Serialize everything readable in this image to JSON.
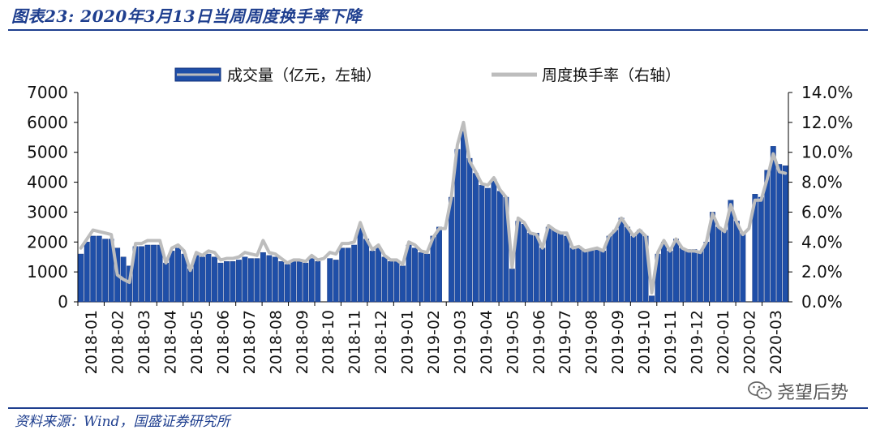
{
  "header": {
    "title": "图表23:  2020年3月13日当周周度换手率下降"
  },
  "footer": {
    "source": "资料来源：Wind，国盛证券研究所",
    "watermark": "尧望后势"
  },
  "colors": {
    "bar": "#1f4fa8",
    "bar_dark": "#0f2f7a",
    "line": "#bdbdbd",
    "title": "#1f3f8f"
  },
  "chart_data": {
    "type": "bar",
    "title": "",
    "y_left": {
      "label": "成交量（亿元，左轴）",
      "ticks": [
        "0",
        "1000",
        "2000",
        "3000",
        "4000",
        "5000",
        "6000",
        "7000"
      ],
      "min": 0,
      "max": 7000
    },
    "y_right": {
      "label": "周度换手率（右轴）",
      "ticks": [
        "0.0%",
        "2.0%",
        "4.0%",
        "6.0%",
        "8.0%",
        "10.0%",
        "12.0%",
        "14.0%"
      ],
      "min": 0,
      "max": 14
    },
    "x_ticks": [
      "2018-01",
      "2018-02",
      "2018-03",
      "2018-04",
      "2018-05",
      "2018-06",
      "2018-07",
      "2018-08",
      "2018-09",
      "2018-10",
      "2018-11",
      "2018-12",
      "2019-01",
      "2019-02",
      "2019-03",
      "2019-04",
      "2019-05",
      "2019-06",
      "2019-07",
      "2019-08",
      "2019-09",
      "2019-10",
      "2019-11",
      "2019-12",
      "2020-01",
      "2020-02",
      "2020-03"
    ],
    "legend": [
      "成交量（亿元，左轴）",
      "周度换手率（右轴）"
    ],
    "series": [
      {
        "name": "成交量（亿元，左轴）",
        "axis": "left",
        "values": [
          1600,
          2000,
          2200,
          2200,
          2100,
          2100,
          1800,
          1500,
          1200,
          1850,
          1850,
          1900,
          1900,
          1900,
          1300,
          1700,
          1800,
          1600,
          1100,
          1550,
          1500,
          1600,
          1500,
          1300,
          1350,
          1350,
          1400,
          1500,
          1450,
          1450,
          1650,
          1550,
          1500,
          1350,
          1250,
          1350,
          1350,
          1300,
          1450,
          1350,
          0,
          1450,
          1400,
          1800,
          1800,
          1900,
          2500,
          2100,
          1700,
          1800,
          1500,
          1350,
          1350,
          1200,
          1900,
          1800,
          1650,
          1600,
          2200,
          2500,
          0,
          3500,
          5100,
          5700,
          4800,
          4300,
          3900,
          3800,
          4100,
          3700,
          3500,
          1100,
          2700,
          2600,
          2300,
          2300,
          1800,
          2500,
          2400,
          2300,
          2200,
          1800,
          1850,
          1700,
          1750,
          1800,
          1700,
          2200,
          2400,
          2800,
          2500,
          2200,
          2400,
          2200,
          200,
          1600,
          2000,
          1700,
          2100,
          1800,
          1750,
          1750,
          1700,
          2000,
          3000,
          2500,
          2400,
          3400,
          2700,
          2300,
          0,
          3600,
          3500,
          4400,
          5200,
          4600,
          4550
        ]
      },
      {
        "name": "周度换手率（右轴）",
        "axis": "right",
        "values": [
          3.6,
          4.2,
          4.8,
          4.7,
          4.6,
          4.5,
          1.8,
          1.5,
          1.3,
          3.9,
          3.9,
          4.1,
          4.1,
          4.1,
          2.6,
          3.6,
          3.8,
          3.4,
          2.1,
          3.3,
          3.1,
          3.4,
          3.3,
          2.8,
          2.9,
          2.9,
          3.0,
          3.3,
          3.2,
          3.1,
          4.1,
          3.3,
          3.2,
          2.9,
          2.6,
          2.8,
          2.8,
          2.7,
          3.1,
          2.8,
          2.9,
          3.3,
          3.2,
          3.9,
          3.9,
          4.0,
          5.3,
          4.2,
          3.5,
          3.8,
          3.1,
          2.8,
          2.8,
          2.5,
          4.0,
          3.8,
          3.4,
          3.3,
          4.3,
          4.9,
          4.9,
          7.0,
          10.5,
          12.0,
          9.4,
          8.7,
          7.9,
          7.8,
          8.3,
          7.5,
          7.0,
          2.3,
          5.6,
          5.3,
          4.6,
          4.5,
          3.6,
          5.1,
          4.8,
          4.6,
          4.6,
          3.6,
          3.7,
          3.4,
          3.5,
          3.6,
          3.4,
          4.4,
          4.8,
          5.6,
          5.0,
          4.4,
          4.8,
          4.4,
          0.6,
          3.3,
          4.1,
          3.4,
          4.2,
          3.6,
          3.4,
          3.4,
          3.3,
          4.0,
          5.9,
          5.0,
          4.7,
          6.5,
          5.3,
          4.5,
          4.9,
          6.8,
          6.8,
          8.2,
          9.9,
          8.7,
          8.6
        ]
      }
    ]
  }
}
